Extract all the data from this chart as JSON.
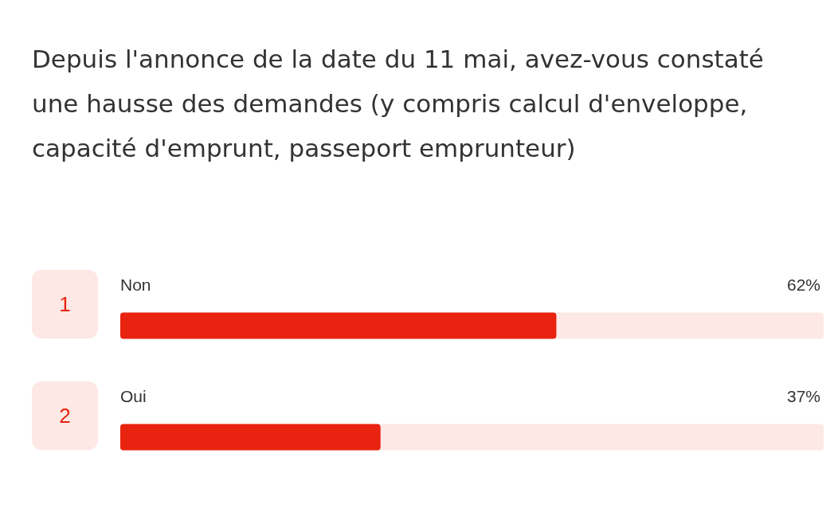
{
  "chart_data": {
    "type": "bar",
    "orientation": "horizontal",
    "title": "Depuis l'annonce de la date du 11 mai, avez-vous constaté une hausse des demandes (y compris calcul d'enveloppe, capacité d'emprunt, passeport emprunteur)",
    "categories": [
      "Non",
      "Oui"
    ],
    "values": [
      62,
      37
    ],
    "value_labels": [
      "62%",
      "37%"
    ],
    "color": "#e8230f",
    "xlim": [
      0,
      100
    ],
    "tick_labels": false,
    "annotations": [
      "1",
      "2"
    ]
  }
}
